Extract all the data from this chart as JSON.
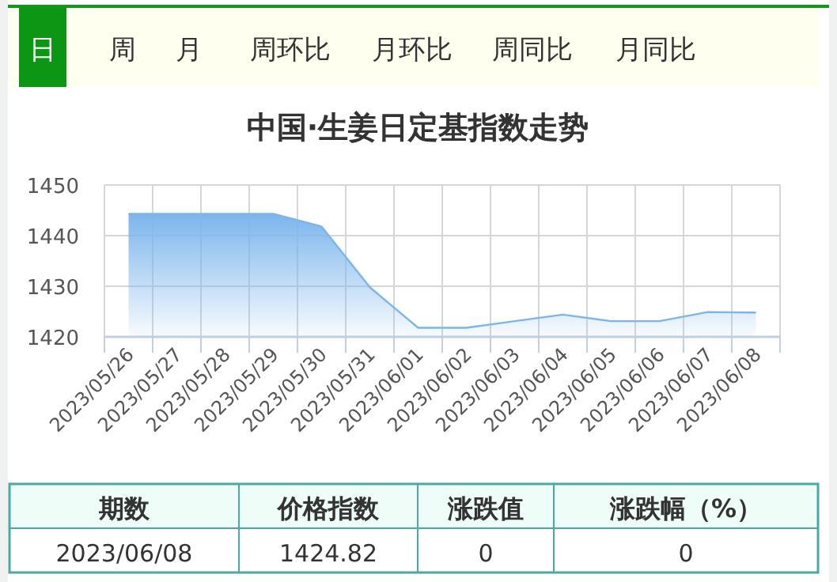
{
  "chart_data": [
    {
      "type": "area",
      "title": "中国·生姜日定基指数走势",
      "annotations": [
        "日",
        "周",
        "月",
        "周环比",
        "月环比",
        "周同比",
        "月同比"
      ],
      "categories": [
        "2023/05/26",
        "2023/05/27",
        "2023/05/28",
        "2023/05/29",
        "2023/05/30",
        "2023/05/31",
        "2023/06/01",
        "2023/06/02",
        "2023/06/03",
        "2023/06/04",
        "2023/06/05",
        "2023/06/06",
        "2023/06/07",
        "2023/06/08"
      ],
      "series": [
        {
          "color": "#7cb5ec",
          "values": [
            1444.3,
            1444.3,
            1444.3,
            1444.3,
            1441.8,
            1429.8,
            1421.8,
            1421.8,
            1423.1,
            1424.4,
            1423.1,
            1423.1,
            1424.9,
            1424.8
          ]
        }
      ],
      "ylim": [
        1420,
        1450
      ],
      "yticks": [
        1420,
        1430,
        1440,
        1450
      ],
      "grid": true
    },
    {
      "type": "other",
      "annotations": [
        "期数",
        "价格指数",
        "涨跌值",
        "涨跌幅（%）",
        "2023/06/08",
        "1424.82",
        "0",
        "0"
      ]
    }
  ]
}
